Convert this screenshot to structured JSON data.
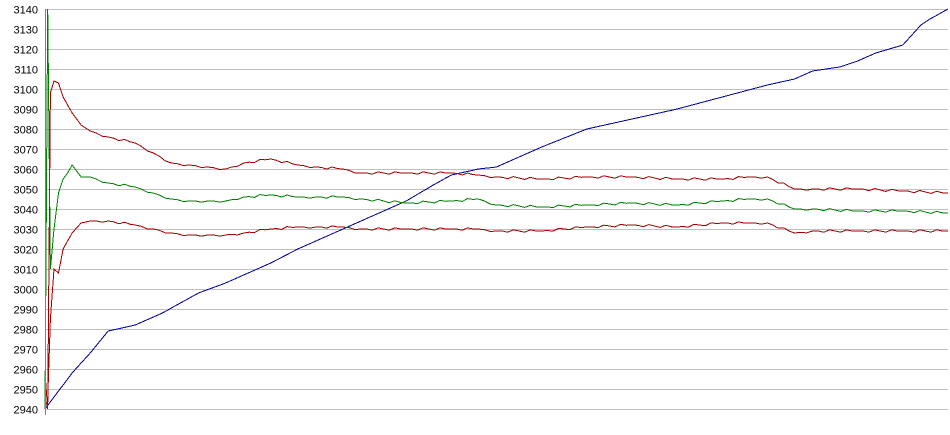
{
  "chart_data": {
    "type": "line",
    "title": "",
    "xlabel": "",
    "ylabel": "",
    "ylim": [
      2940,
      3140
    ],
    "yticks": [
      "3140",
      "3130",
      "3120",
      "3110",
      "3100",
      "3090",
      "3080",
      "3070",
      "3060",
      "3050",
      "3040",
      "3030",
      "3020",
      "3010",
      "3000",
      "2990",
      "2980",
      "2970",
      "2960",
      "2950",
      "2940"
    ],
    "xlim": [
      0,
      100
    ],
    "grid": "horizontal",
    "legend": "none",
    "series": [
      {
        "color": "#0000a0",
        "x": [
          0,
          1,
          2,
          3,
          5,
          7,
          8,
          10,
          13,
          15,
          17,
          20,
          25,
          28,
          30,
          35,
          40,
          43,
          45,
          48,
          50,
          55,
          60,
          65,
          70,
          75,
          80,
          83,
          85,
          88,
          90,
          92,
          95,
          96,
          97,
          98,
          100
        ],
        "y": [
          2940,
          2946,
          2952,
          2958,
          2968,
          2979,
          2980,
          2982,
          2988,
          2993,
          2998,
          3003,
          3013,
          3020,
          3024,
          3034,
          3044,
          3052,
          3057,
          3060,
          3061,
          3071,
          3080,
          3085,
          3090,
          3096,
          3102,
          3105,
          3109,
          3111,
          3114,
          3118,
          3122,
          3127,
          3132,
          3135,
          3140
        ]
      },
      {
        "color": "#a00000",
        "x": [
          0,
          0.3,
          0.6,
          1,
          1.5,
          2,
          3,
          4,
          5,
          7,
          10,
          12,
          14,
          16,
          18,
          20,
          22,
          25,
          28,
          30,
          33,
          35,
          40,
          45,
          48,
          50,
          55,
          60,
          65,
          70,
          75,
          78,
          80,
          83,
          85,
          90,
          95,
          100
        ],
        "y": [
          2958,
          2940,
          3098,
          3104,
          3103,
          3096,
          3088,
          3082,
          3079,
          3076,
          3073,
          3068,
          3063,
          3062,
          3061,
          3060,
          3063,
          3065,
          3062,
          3061,
          3060,
          3058,
          3058,
          3058,
          3057,
          3056,
          3055,
          3056,
          3056,
          3055,
          3055,
          3056,
          3056,
          3050,
          3050,
          3050,
          3049,
          3048
        ]
      },
      {
        "color": "#008000",
        "x": [
          0,
          0.3,
          0.6,
          1,
          1.5,
          2,
          2.5,
          3,
          4,
          5,
          7,
          10,
          12,
          14,
          16,
          18,
          20,
          22,
          25,
          28,
          30,
          33,
          35,
          40,
          45,
          48,
          50,
          55,
          60,
          65,
          70,
          75,
          78,
          80,
          83,
          85,
          90,
          95,
          100
        ],
        "y": [
          2940,
          3140,
          3010,
          3030,
          3048,
          3055,
          3058,
          3062,
          3056,
          3056,
          3053,
          3051,
          3048,
          3045,
          3044,
          3044,
          3044,
          3046,
          3047,
          3046,
          3046,
          3046,
          3045,
          3043,
          3044,
          3045,
          3042,
          3041,
          3042,
          3043,
          3042,
          3044,
          3045,
          3045,
          3040,
          3040,
          3039,
          3039,
          3038
        ]
      },
      {
        "color": "#a00000",
        "x": [
          0,
          0.3,
          0.6,
          1,
          1.5,
          2,
          3,
          4,
          5,
          7,
          10,
          12,
          14,
          16,
          18,
          20,
          22,
          25,
          28,
          30,
          33,
          35,
          40,
          45,
          48,
          50,
          55,
          60,
          65,
          70,
          75,
          78,
          80,
          83,
          85,
          90,
          95,
          100
        ],
        "y": [
          2940,
          2945,
          2985,
          3010,
          3008,
          3020,
          3028,
          3033,
          3034,
          3034,
          3032,
          3030,
          3028,
          3027,
          3027,
          3027,
          3028,
          3030,
          3031,
          3031,
          3031,
          3030,
          3030,
          3030,
          3030,
          3029,
          3029,
          3031,
          3032,
          3031,
          3033,
          3033,
          3033,
          3028,
          3029,
          3029,
          3029,
          3029
        ]
      }
    ]
  }
}
